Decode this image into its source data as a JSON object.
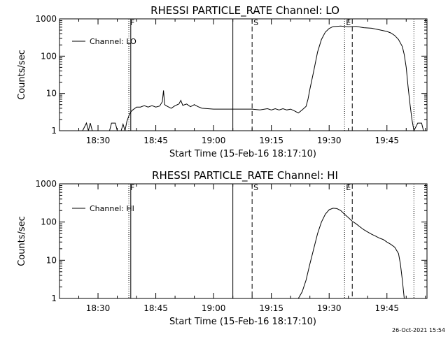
{
  "footer": {
    "timestamp": "26-Oct-2021 15:54"
  },
  "chart_data": [
    {
      "type": "line",
      "title": "RHESSI PARTICLE_RATE Channel: LO",
      "xlabel": "Start Time (15-Feb-16 18:17:10)",
      "ylabel": "Counts/sec",
      "y_scale": "log",
      "ylim": [
        1,
        1000
      ],
      "xlim_minutes_after_1820": [
        0,
        95.4
      ],
      "x_tick_labels": [
        "18:30",
        "18:45",
        "19:00",
        "19:15",
        "19:30",
        "19:45"
      ],
      "y_tick_labels": [
        "1",
        "10",
        "100",
        "1000"
      ],
      "legend": {
        "entries": [
          "Channel: LO"
        ],
        "placement": "top-left"
      },
      "markers": [
        {
          "label": "F",
          "time": "18:38",
          "style": "dotted"
        },
        {
          "label": "",
          "time": "18:38.5",
          "style": "solid"
        },
        {
          "label": "",
          "time": "19:05",
          "style": "solid"
        },
        {
          "label": "S",
          "time": "19:10",
          "style": "dashed"
        },
        {
          "label": "E",
          "time": "19:34",
          "style": "dotted"
        },
        {
          "label": "",
          "time": "19:36",
          "style": "dashed"
        },
        {
          "label": "",
          "time": "19:52",
          "style": "dotted"
        }
      ],
      "series": [
        {
          "name": "Channel: LO",
          "points": [
            [
              6,
              1
            ],
            [
              7,
              1.6
            ],
            [
              7.5,
              1
            ],
            [
              8,
              1.6
            ],
            [
              8.5,
              1
            ],
            [
              13,
              1
            ],
            [
              13.5,
              1.6
            ],
            [
              14.5,
              1.6
            ],
            [
              15,
              1
            ],
            [
              16,
              1
            ],
            [
              16.5,
              1.5
            ],
            [
              17,
              1
            ],
            [
              17.5,
              1.8
            ],
            [
              18,
              2.5
            ],
            [
              18.5,
              3.2
            ],
            [
              19,
              3.6
            ],
            [
              20,
              4.3
            ],
            [
              21,
              4.3
            ],
            [
              22,
              4.7
            ],
            [
              23,
              4.3
            ],
            [
              24,
              4.7
            ],
            [
              25,
              4.3
            ],
            [
              26,
              4.6
            ],
            [
              26.7,
              6
            ],
            [
              27,
              12
            ],
            [
              27.3,
              5
            ],
            [
              28,
              4.5
            ],
            [
              29,
              4.0
            ],
            [
              30,
              4.7
            ],
            [
              31,
              5.2
            ],
            [
              31.5,
              6.5
            ],
            [
              32,
              4.8
            ],
            [
              33,
              5.2
            ],
            [
              34,
              4.4
            ],
            [
              35,
              5.0
            ],
            [
              36,
              4.4
            ],
            [
              37,
              4.0
            ],
            [
              40,
              3.8
            ],
            [
              45,
              3.8
            ],
            [
              50,
              3.8
            ],
            [
              52,
              3.6
            ],
            [
              54,
              3.9
            ],
            [
              55,
              3.6
            ],
            [
              56,
              3.9
            ],
            [
              57,
              3.6
            ],
            [
              58,
              3.9
            ],
            [
              59,
              3.6
            ],
            [
              60,
              3.8
            ],
            [
              61,
              3.4
            ],
            [
              62,
              3.0
            ],
            [
              63,
              3.6
            ],
            [
              64,
              4.5
            ],
            [
              64.5,
              7
            ],
            [
              65,
              13
            ],
            [
              66,
              40
            ],
            [
              67,
              130
            ],
            [
              68,
              280
            ],
            [
              69,
              440
            ],
            [
              70,
              550
            ],
            [
              71,
              620
            ],
            [
              73,
              640
            ],
            [
              75,
              610
            ],
            [
              77,
              630
            ],
            [
              79,
              580
            ],
            [
              81,
              560
            ],
            [
              83,
              510
            ],
            [
              85,
              460
            ],
            [
              86,
              420
            ],
            [
              87,
              360
            ],
            [
              88,
              280
            ],
            [
              89,
              180
            ],
            [
              89.5,
              110
            ],
            [
              90,
              50
            ],
            [
              90.5,
              15
            ],
            [
              91,
              5
            ],
            [
              91.5,
              2
            ],
            [
              92,
              1
            ],
            [
              93,
              1.6
            ],
            [
              94,
              1.6
            ],
            [
              94.5,
              1
            ]
          ]
        }
      ]
    },
    {
      "type": "line",
      "title": "RHESSI PARTICLE_RATE Channel: HI",
      "xlabel": "Start Time (15-Feb-16 18:17:10)",
      "ylabel": "Counts/sec",
      "y_scale": "log",
      "ylim": [
        1,
        1000
      ],
      "xlim_minutes_after_1820": [
        0,
        95.4
      ],
      "x_tick_labels": [
        "18:30",
        "18:45",
        "19:00",
        "19:15",
        "19:30",
        "19:45"
      ],
      "y_tick_labels": [
        "1",
        "10",
        "100",
        "1000"
      ],
      "legend": {
        "entries": [
          "Channel: HI"
        ],
        "placement": "top-left"
      },
      "markers": [
        {
          "label": "F",
          "time": "18:38",
          "style": "dotted"
        },
        {
          "label": "",
          "time": "18:38.5",
          "style": "solid"
        },
        {
          "label": "",
          "time": "19:05",
          "style": "solid"
        },
        {
          "label": "S",
          "time": "19:10",
          "style": "dashed"
        },
        {
          "label": "E",
          "time": "19:34",
          "style": "dotted"
        },
        {
          "label": "",
          "time": "19:36",
          "style": "dashed"
        },
        {
          "label": "",
          "time": "19:52",
          "style": "dotted"
        }
      ],
      "series": [
        {
          "name": "Channel: HI",
          "points": [
            [
              62,
              1
            ],
            [
              63,
              1.5
            ],
            [
              64,
              3
            ],
            [
              65,
              8
            ],
            [
              66,
              20
            ],
            [
              67,
              50
            ],
            [
              68,
              100
            ],
            [
              69,
              160
            ],
            [
              70,
              210
            ],
            [
              71,
              230
            ],
            [
              72,
              225
            ],
            [
              73,
              200
            ],
            [
              74,
              160
            ],
            [
              75,
              130
            ],
            [
              76,
              105
            ],
            [
              77,
              90
            ],
            [
              78,
              75
            ],
            [
              79,
              63
            ],
            [
              80,
              55
            ],
            [
              81,
              48
            ],
            [
              82,
              43
            ],
            [
              83,
              38
            ],
            [
              84,
              35
            ],
            [
              85,
              30
            ],
            [
              86,
              26
            ],
            [
              87,
              22
            ],
            [
              88,
              15
            ],
            [
              88.5,
              8
            ],
            [
              89,
              3
            ],
            [
              89.5,
              1
            ]
          ]
        }
      ]
    }
  ]
}
